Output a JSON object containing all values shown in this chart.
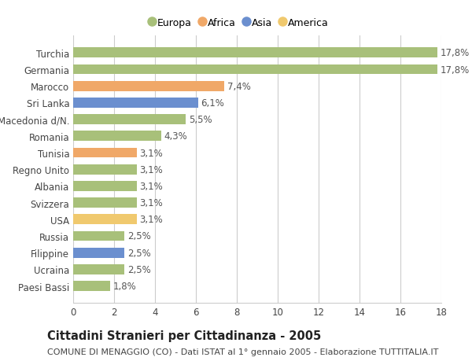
{
  "categories": [
    "Paesi Bassi",
    "Ucraina",
    "Filippine",
    "Russia",
    "USA",
    "Svizzera",
    "Albania",
    "Regno Unito",
    "Tunisia",
    "Romania",
    "Macedonia d/N.",
    "Sri Lanka",
    "Marocco",
    "Germania",
    "Turchia"
  ],
  "values": [
    1.8,
    2.5,
    2.5,
    2.5,
    3.1,
    3.1,
    3.1,
    3.1,
    3.1,
    4.3,
    5.5,
    6.1,
    7.4,
    17.8,
    17.8
  ],
  "colors": [
    "#a8c07a",
    "#a8c07a",
    "#6b8fcf",
    "#a8c07a",
    "#f0c96e",
    "#a8c07a",
    "#a8c07a",
    "#a8c07a",
    "#f0a868",
    "#a8c07a",
    "#a8c07a",
    "#6b8fcf",
    "#f0a868",
    "#a8c07a",
    "#a8c07a"
  ],
  "labels": [
    "1,8%",
    "2,5%",
    "2,5%",
    "2,5%",
    "3,1%",
    "3,1%",
    "3,1%",
    "3,1%",
    "3,1%",
    "4,3%",
    "5,5%",
    "6,1%",
    "7,4%",
    "17,8%",
    "17,8%"
  ],
  "legend": [
    {
      "label": "Europa",
      "color": "#a8c07a"
    },
    {
      "label": "Africa",
      "color": "#f0a868"
    },
    {
      "label": "Asia",
      "color": "#6b8fcf"
    },
    {
      "label": "America",
      "color": "#f0c96e"
    }
  ],
  "xlim": [
    0,
    18
  ],
  "xticks": [
    0,
    2,
    4,
    6,
    8,
    10,
    12,
    14,
    16,
    18
  ],
  "title": "Cittadini Stranieri per Cittadinanza - 2005",
  "subtitle": "COMUNE DI MENAGGIO (CO) - Dati ISTAT al 1° gennaio 2005 - Elaborazione TUTTITALIA.IT",
  "bg_color": "#ffffff",
  "grid_color": "#cccccc",
  "label_fontsize": 8.5,
  "tick_fontsize": 8.5,
  "title_fontsize": 10.5,
  "subtitle_fontsize": 8
}
